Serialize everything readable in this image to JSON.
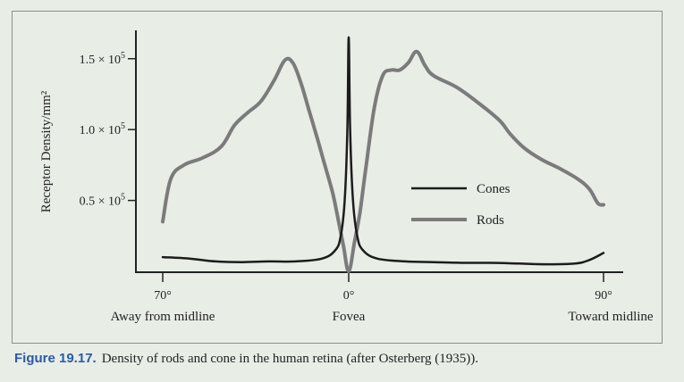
{
  "caption": {
    "figure_label": "Figure 19.17.",
    "text": "Density of rods and cone in the human retina (after Osterberg (1935))."
  },
  "chart_data": {
    "type": "line",
    "ylabel": "Receptor Density/mm²",
    "y_ticks": [
      {
        "value": 150000,
        "base": "1.5 × 10",
        "exp": "5"
      },
      {
        "value": 100000,
        "base": "1.0 × 10",
        "exp": "5"
      },
      {
        "value": 50000,
        "base": "0.5 × 10",
        "exp": "5"
      }
    ],
    "x_ticks": [
      {
        "value": -70,
        "label": "70°",
        "sublabel": "Away from midline"
      },
      {
        "value": 0,
        "label": "0°",
        "sublabel": "Fovea"
      },
      {
        "value": 90,
        "label": "90°",
        "sublabel": "Toward midline"
      }
    ],
    "xlim": [
      -70,
      90
    ],
    "ylim": [
      0,
      170000
    ],
    "legend_position": "center-right",
    "series": [
      {
        "name": "Cones",
        "color": "#1c1c1c",
        "x": [
          -70,
          -60,
          -50,
          -40,
          -30,
          -20,
          -10,
          -5,
          -3,
          -1.5,
          -0.5,
          0,
          0.5,
          1.5,
          3,
          5,
          10,
          20,
          30,
          40,
          50,
          60,
          70,
          80,
          85,
          90
        ],
        "y": [
          10000,
          9000,
          7000,
          6500,
          7000,
          7000,
          9000,
          15000,
          25000,
          50000,
          100000,
          165000,
          100000,
          50000,
          25000,
          15000,
          9000,
          7000,
          6500,
          6000,
          6000,
          5500,
          5000,
          5500,
          8000,
          13000
        ]
      },
      {
        "name": "Rods",
        "color": "#7b7b7b",
        "x": [
          -70,
          -67,
          -62,
          -55,
          -48,
          -43,
          -38,
          -33,
          -28,
          -24,
          -21,
          -18,
          -15,
          -12,
          -9,
          -6,
          -4,
          -2,
          0,
          2,
          4,
          6,
          9,
          12,
          15,
          18,
          21,
          24,
          27,
          30,
          38,
          45,
          53,
          57,
          62,
          68,
          75,
          81,
          85,
          88,
          90
        ],
        "y": [
          35000,
          65000,
          75000,
          80000,
          88000,
          103000,
          112000,
          120000,
          135000,
          149000,
          147000,
          133000,
          114000,
          95000,
          75000,
          55000,
          37000,
          18000,
          0,
          20000,
          42000,
          72000,
          115000,
          138000,
          142000,
          142000,
          147000,
          155000,
          145000,
          138000,
          130000,
          120000,
          107000,
          97000,
          87000,
          79000,
          72000,
          65000,
          58000,
          48000,
          47000
        ]
      }
    ]
  }
}
